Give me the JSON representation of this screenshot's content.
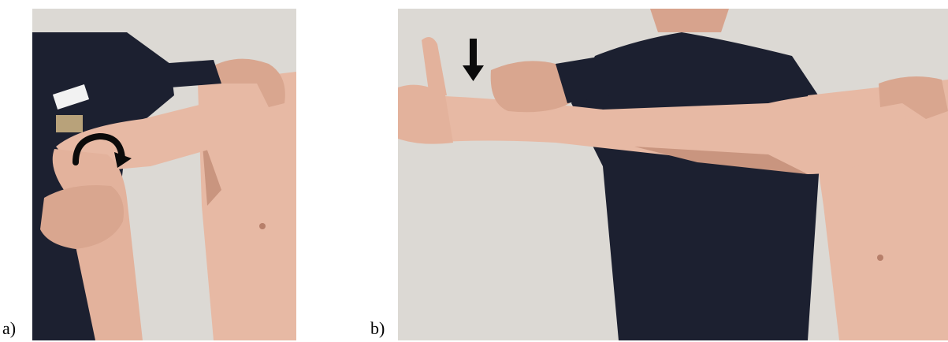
{
  "figure": {
    "panels": [
      {
        "label": "a)",
        "scene": "shoulder-internal-rotation-test"
      },
      {
        "label": "b)",
        "scene": "arm-abduction-thumb-down-test"
      }
    ],
    "colors": {
      "wall": "#dcd9d4",
      "shirt": "#1c2030",
      "skin": "#e7b9a4",
      "skin_shadow": "#c9957f",
      "arrow": "#0b0b0b"
    },
    "icons": {
      "panel_a_marker": "curved-arrow-icon",
      "panel_b_marker": "down-arrow-icon"
    }
  }
}
